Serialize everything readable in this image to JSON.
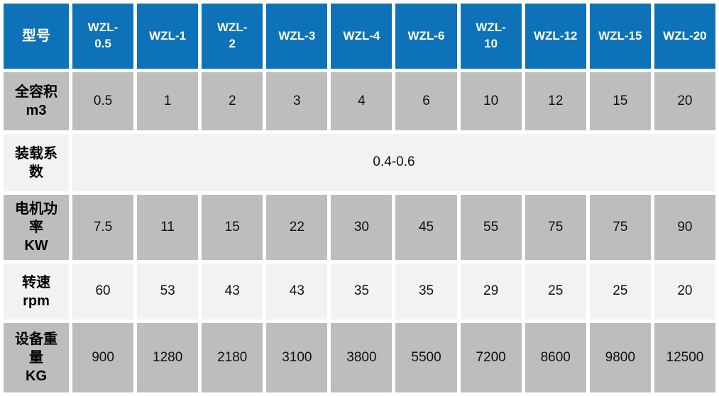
{
  "table": {
    "colors": {
      "header_bg": "#0e72b8",
      "header_text": "#ffffff",
      "gray_row_bg": "#bdbdbd",
      "light_row_bg": "#f2f2f2",
      "gap_color": "#ffffff",
      "cell_text": "#111111"
    },
    "header": {
      "corner_label": "型号",
      "models": [
        "WZL-\n0.5",
        "WZL-1",
        "WZL-\n2",
        "WZL-3",
        "WZL-4",
        "WZL-6",
        "WZL-\n10",
        "WZL-12",
        "WZL-15",
        "WZL-20"
      ]
    },
    "rows": [
      {
        "label": "全容积\nm3",
        "shade": "gray",
        "merged": false,
        "values": [
          "0.5",
          "1",
          "2",
          "3",
          "4",
          "6",
          "10",
          "12",
          "15",
          "20"
        ]
      },
      {
        "label": "装载系\n数",
        "shade": "light",
        "merged": true,
        "values": [
          "0.4-0.6"
        ]
      },
      {
        "label": "电机功\n率\nKW",
        "shade": "gray",
        "merged": false,
        "values": [
          "7.5",
          "11",
          "15",
          "22",
          "30",
          "45",
          "55",
          "75",
          "75",
          "90"
        ]
      },
      {
        "label": "转速\nrpm",
        "shade": "light",
        "merged": false,
        "values": [
          "60",
          "53",
          "43",
          "43",
          "35",
          "35",
          "29",
          "25",
          "25",
          "20"
        ]
      },
      {
        "label": "设备重\n量\nKG",
        "shade": "gray",
        "merged": false,
        "values": [
          "900",
          "1280",
          "2180",
          "3100",
          "3800",
          "5500",
          "7200",
          "8600",
          "9800",
          "12500"
        ]
      }
    ]
  },
  "chart_data": {
    "type": "table",
    "columns": [
      "型号",
      "WZL-0.5",
      "WZL-1",
      "WZL-2",
      "WZL-3",
      "WZL-4",
      "WZL-6",
      "WZL-10",
      "WZL-12",
      "WZL-15",
      "WZL-20"
    ],
    "rows": [
      {
        "parameter": "全容积 m3",
        "values": [
          0.5,
          1,
          2,
          3,
          4,
          6,
          10,
          12,
          15,
          20
        ],
        "merged_across_all_columns": false
      },
      {
        "parameter": "装载系数",
        "values": [
          "0.4-0.6"
        ],
        "merged_across_all_columns": true
      },
      {
        "parameter": "电机功率 KW",
        "values": [
          7.5,
          11,
          15,
          22,
          30,
          45,
          55,
          75,
          75,
          90
        ],
        "merged_across_all_columns": false
      },
      {
        "parameter": "转速 rpm",
        "values": [
          60,
          53,
          43,
          43,
          35,
          35,
          29,
          25,
          25,
          20
        ],
        "merged_across_all_columns": false
      },
      {
        "parameter": "设备重量 KG",
        "values": [
          900,
          1280,
          2180,
          3100,
          3800,
          5500,
          7200,
          8600,
          9800,
          12500
        ],
        "merged_across_all_columns": false
      }
    ]
  }
}
